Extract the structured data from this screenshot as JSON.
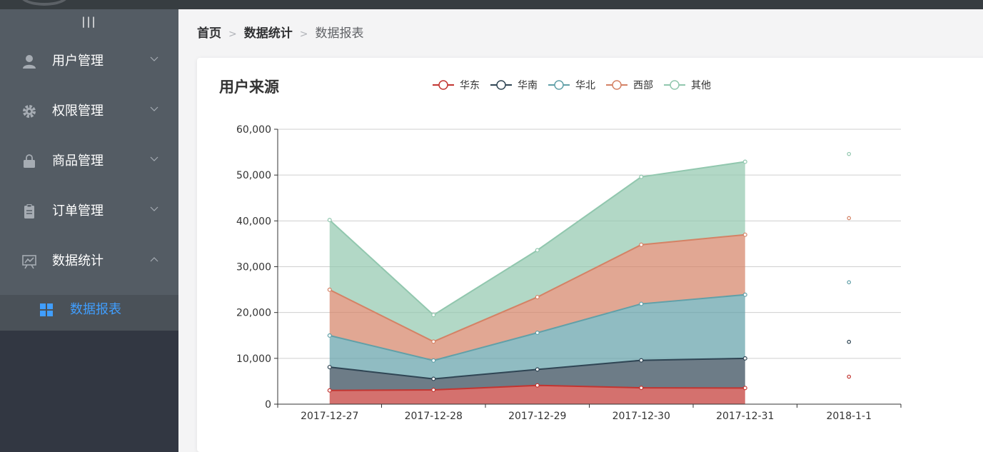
{
  "breadcrumb": {
    "home": "首页",
    "section": "数据统计",
    "current": "数据报表"
  },
  "sidebar": {
    "toggle_label": "|||",
    "items": [
      {
        "label": "用户管理",
        "icon": "user-icon",
        "expanded": false
      },
      {
        "label": "权限管理",
        "icon": "gear-icon",
        "expanded": false
      },
      {
        "label": "商品管理",
        "icon": "bag-icon",
        "expanded": false
      },
      {
        "label": "订单管理",
        "icon": "clipboard-icon",
        "expanded": false
      },
      {
        "label": "数据统计",
        "icon": "chart-icon",
        "expanded": true
      }
    ],
    "sub_item": {
      "label": "数据报表",
      "icon": "grid-icon",
      "active_color": "#409eff"
    }
  },
  "chart_data": {
    "type": "area",
    "stacked": true,
    "title": "用户来源",
    "categories": [
      "2017-12-27",
      "2017-12-28",
      "2017-12-29",
      "2017-12-30",
      "2017-12-31",
      "2018-1-1"
    ],
    "y_ticks": [
      "0",
      "10,000",
      "20,000",
      "30,000",
      "40,000",
      "50,000",
      "60,000"
    ],
    "ylim": [
      0,
      60000
    ],
    "grid": true,
    "legend_position": "top",
    "series": [
      {
        "name": "华东",
        "color": "#c23531",
        "values": [
          2999,
          3111,
          4100,
          3565,
          3528,
          6000
        ]
      },
      {
        "name": "华南",
        "color": "#2f4554",
        "values": [
          5090,
          2412,
          3476,
          6000,
          6466,
          7600
        ]
      },
      {
        "name": "华北",
        "color": "#61a0a8",
        "values": [
          6888,
          4000,
          8010,
          12321,
          13890,
          13000
        ]
      },
      {
        "name": "西部",
        "color": "#d48265",
        "values": [
          9991,
          4130,
          7777,
          12903,
          13098,
          14000
        ]
      },
      {
        "name": "其他",
        "color": "#91c7ae",
        "values": [
          15212,
          5800,
          10241,
          14821,
          15923,
          14000
        ]
      }
    ],
    "fill_through_index": 4
  }
}
